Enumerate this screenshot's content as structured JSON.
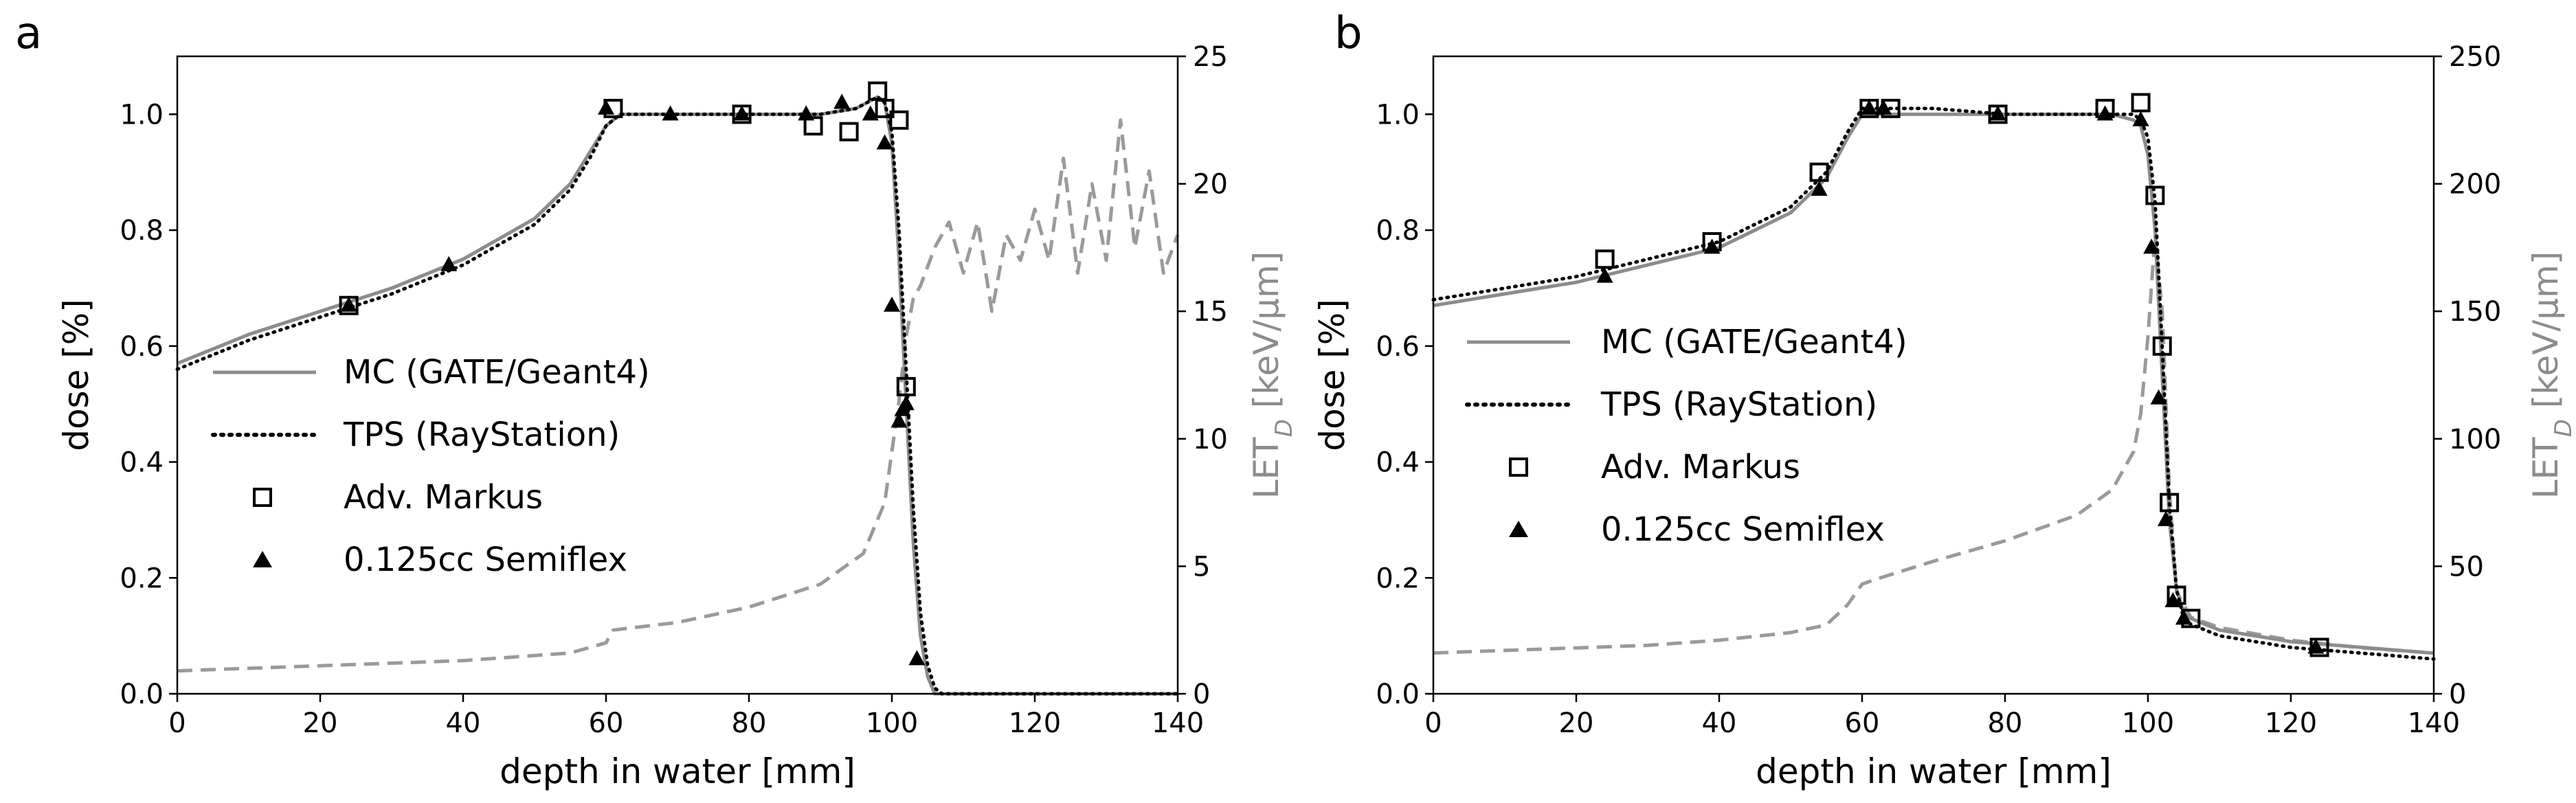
{
  "figure": {
    "panels": [
      "a",
      "b"
    ]
  },
  "chart_data": [
    {
      "type": "line",
      "panel": "a",
      "xlabel": "depth in water [mm]",
      "ylabel": "dose [%]",
      "y2label": "LET_D [keV/µm]",
      "xlim": [
        0,
        140
      ],
      "ylim": [
        0,
        1.1
      ],
      "y2lim": [
        0,
        25
      ],
      "xticks": [
        0,
        20,
        40,
        60,
        80,
        100,
        120,
        140
      ],
      "yticks": [
        0.0,
        0.2,
        0.4,
        0.6,
        0.8,
        1.0
      ],
      "y2ticks": [
        0,
        5,
        10,
        15,
        20,
        25
      ],
      "ytick_labels": [
        "0.0",
        "0.2",
        "0.4",
        "0.6",
        "0.8",
        "1.0"
      ],
      "legend": [
        "MC (GATE/Geant4)",
        "TPS (RayStation)",
        "Adv. Markus",
        "0.125cc Semiflex"
      ],
      "series": [
        {
          "name": "MC (GATE/Geant4)",
          "style": "solid-gray",
          "x": [
            0,
            10,
            20,
            30,
            40,
            50,
            55,
            58,
            60,
            62,
            70,
            80,
            90,
            95,
            98,
            99,
            100,
            101,
            102,
            103,
            104,
            105,
            106,
            108,
            120,
            140
          ],
          "y": [
            0.57,
            0.62,
            0.66,
            0.7,
            0.75,
            0.82,
            0.88,
            0.94,
            0.98,
            1.0,
            1.0,
            1.0,
            1.0,
            1.01,
            1.03,
            1.02,
            0.95,
            0.75,
            0.5,
            0.26,
            0.1,
            0.03,
            0.0,
            0.0,
            0.0,
            0.0
          ]
        },
        {
          "name": "TPS (RayStation)",
          "style": "dotted-black",
          "x": [
            0,
            10,
            20,
            30,
            40,
            50,
            55,
            58,
            60,
            62,
            70,
            80,
            90,
            95,
            98,
            99,
            100,
            101,
            102,
            103,
            104,
            105,
            106,
            107,
            108,
            120,
            140
          ],
          "y": [
            0.56,
            0.61,
            0.65,
            0.69,
            0.74,
            0.81,
            0.87,
            0.93,
            0.98,
            1.0,
            1.0,
            1.0,
            1.0,
            1.01,
            1.03,
            1.02,
            0.97,
            0.8,
            0.56,
            0.32,
            0.14,
            0.05,
            0.01,
            0.0,
            0.0,
            0.0,
            0.0
          ]
        },
        {
          "name": "Adv. Markus",
          "marker": "square",
          "x": [
            24,
            61,
            79,
            89,
            94,
            98,
            99,
            101,
            102
          ],
          "y": [
            0.67,
            1.01,
            1.0,
            0.98,
            0.97,
            1.04,
            1.01,
            0.99,
            0.53
          ]
        },
        {
          "name": "0.125cc Semiflex",
          "marker": "triangle",
          "x": [
            24,
            38,
            60,
            69,
            79,
            88,
            93,
            97,
            99,
            100,
            101,
            101.5,
            102,
            103.5
          ],
          "y": [
            0.67,
            0.74,
            1.01,
            1.0,
            1.0,
            1.0,
            1.02,
            1.0,
            0.95,
            0.67,
            0.47,
            0.49,
            0.5,
            0.06
          ]
        },
        {
          "name": "LET_D",
          "style": "dashed-gray",
          "axis": "right",
          "x": [
            0,
            20,
            40,
            55,
            60,
            61,
            70,
            80,
            90,
            96,
            99,
            101,
            102,
            103,
            104,
            106,
            108,
            110,
            112,
            114,
            116,
            118,
            120,
            122,
            124,
            126,
            128,
            130,
            132,
            134,
            136,
            138,
            140
          ],
          "y": [
            0.9,
            1.1,
            1.3,
            1.6,
            2.0,
            2.5,
            2.8,
            3.4,
            4.3,
            5.5,
            7.5,
            11.5,
            14.0,
            15.5,
            16.0,
            17.5,
            18.5,
            16.5,
            18.5,
            15.0,
            18.0,
            17.0,
            19.0,
            17.0,
            21.0,
            16.5,
            20.0,
            17.0,
            22.5,
            17.5,
            20.5,
            16.5,
            18.0
          ]
        }
      ]
    },
    {
      "type": "line",
      "panel": "b",
      "xlabel": "depth in water [mm]",
      "ylabel": "dose [%]",
      "y2label": "LET_D [keV/µm]",
      "xlim": [
        0,
        140
      ],
      "ylim": [
        0,
        1.1
      ],
      "y2lim": [
        0,
        250
      ],
      "xticks": [
        0,
        20,
        40,
        60,
        80,
        100,
        120,
        140
      ],
      "yticks": [
        0.0,
        0.2,
        0.4,
        0.6,
        0.8,
        1.0
      ],
      "y2ticks": [
        0,
        50,
        100,
        150,
        200,
        250
      ],
      "ytick_labels": [
        "0.0",
        "0.2",
        "0.4",
        "0.6",
        "0.8",
        "1.0"
      ],
      "legend": [
        "MC (GATE/Geant4)",
        "TPS (RayStation)",
        "Adv. Markus",
        "0.125cc Semiflex"
      ],
      "series": [
        {
          "name": "MC (GATE/Geant4)",
          "style": "solid-gray",
          "x": [
            0,
            10,
            20,
            30,
            40,
            50,
            55,
            58,
            60,
            62,
            70,
            80,
            90,
            95,
            98,
            99,
            100,
            101,
            102,
            103,
            104,
            105,
            106,
            110,
            120,
            130,
            140
          ],
          "y": [
            0.67,
            0.69,
            0.71,
            0.74,
            0.77,
            0.83,
            0.89,
            0.96,
            1.0,
            1.0,
            1.0,
            1.0,
            1.0,
            1.0,
            0.99,
            0.98,
            0.93,
            0.8,
            0.55,
            0.3,
            0.18,
            0.14,
            0.13,
            0.11,
            0.09,
            0.08,
            0.07
          ]
        },
        {
          "name": "TPS (RayStation)",
          "style": "dotted-black",
          "x": [
            0,
            10,
            20,
            30,
            40,
            50,
            55,
            58,
            60,
            62,
            70,
            80,
            90,
            95,
            98,
            99,
            100,
            101,
            102,
            103,
            104,
            105,
            106,
            110,
            120,
            130,
            140
          ],
          "y": [
            0.68,
            0.7,
            0.72,
            0.75,
            0.78,
            0.84,
            0.9,
            0.97,
            1.01,
            1.01,
            1.01,
            1.0,
            1.0,
            1.0,
            1.0,
            0.99,
            0.96,
            0.85,
            0.6,
            0.33,
            0.18,
            0.13,
            0.12,
            0.1,
            0.08,
            0.07,
            0.06
          ]
        },
        {
          "name": "Adv. Markus",
          "marker": "square",
          "x": [
            24,
            39,
            54,
            61,
            64,
            79,
            94,
            99,
            101,
            102,
            103,
            104,
            106,
            124
          ],
          "y": [
            0.75,
            0.78,
            0.9,
            1.01,
            1.01,
            1.0,
            1.01,
            1.02,
            0.86,
            0.6,
            0.33,
            0.17,
            0.13,
            0.08
          ]
        },
        {
          "name": "0.125cc Semiflex",
          "marker": "triangle",
          "x": [
            24,
            39,
            54,
            61,
            63,
            79,
            94,
            99,
            100.5,
            101.5,
            102.5,
            103.5,
            105,
            123.5
          ],
          "y": [
            0.72,
            0.77,
            0.87,
            1.01,
            1.01,
            1.0,
            1.0,
            0.99,
            0.77,
            0.51,
            0.3,
            0.16,
            0.13,
            0.08
          ]
        },
        {
          "name": "LET_D",
          "style": "dashed-gray",
          "axis": "right",
          "x": [
            0,
            10,
            20,
            30,
            40,
            50,
            55,
            58,
            60,
            62,
            70,
            80,
            90,
            95,
            98,
            99,
            100,
            101,
            102,
            103,
            104,
            106,
            110,
            120,
            130,
            140
          ],
          "y": [
            16,
            17,
            18,
            19,
            21,
            24,
            27,
            35,
            43,
            45,
            52,
            60,
            70,
            80,
            95,
            110,
            140,
            180,
            150,
            80,
            40,
            30,
            26,
            21,
            18,
            16
          ]
        }
      ]
    }
  ]
}
